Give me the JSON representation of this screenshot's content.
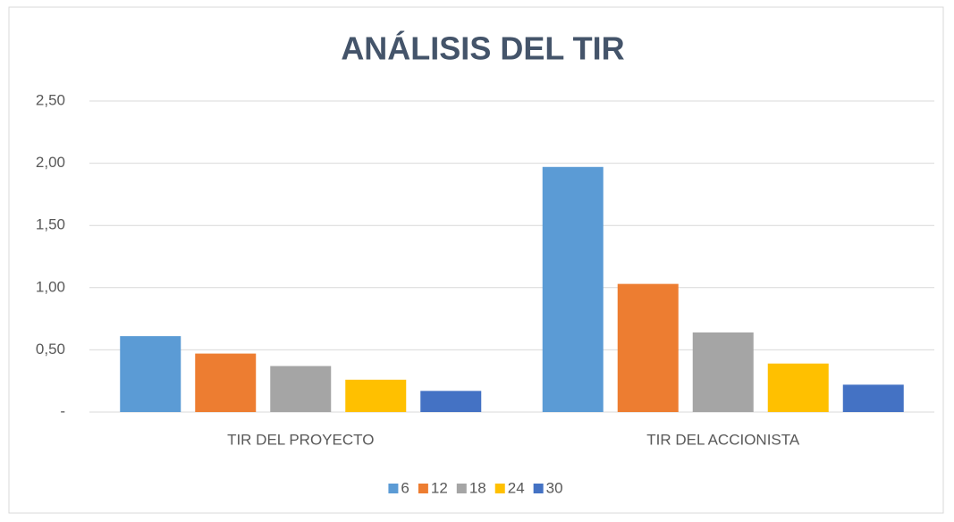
{
  "chart_data": {
    "type": "bar",
    "title": "ANÁLISIS DEL TIR",
    "categories": [
      "TIR DEL PROYECTO",
      "TIR DEL ACCIONISTA"
    ],
    "series": [
      {
        "name": "6",
        "color": "#5b9bd5",
        "values": [
          0.61,
          1.97
        ]
      },
      {
        "name": "12",
        "color": "#ed7d31",
        "values": [
          0.47,
          1.03
        ]
      },
      {
        "name": "18",
        "color": "#a5a5a5",
        "values": [
          0.37,
          0.64
        ]
      },
      {
        "name": "24",
        "color": "#ffc000",
        "values": [
          0.26,
          0.39
        ]
      },
      {
        "name": "30",
        "color": "#4472c4",
        "values": [
          0.17,
          0.22
        ]
      }
    ],
    "ylim": [
      0,
      2.5
    ],
    "yticks": [
      {
        "value": 0,
        "label": "-"
      },
      {
        "value": 0.5,
        "label": "0,50"
      },
      {
        "value": 1,
        "label": "1,00"
      },
      {
        "value": 1.5,
        "label": "1,50"
      },
      {
        "value": 2,
        "label": "2,00"
      },
      {
        "value": 2.5,
        "label": "2,50"
      }
    ],
    "grid": true,
    "legend": "bottom"
  }
}
